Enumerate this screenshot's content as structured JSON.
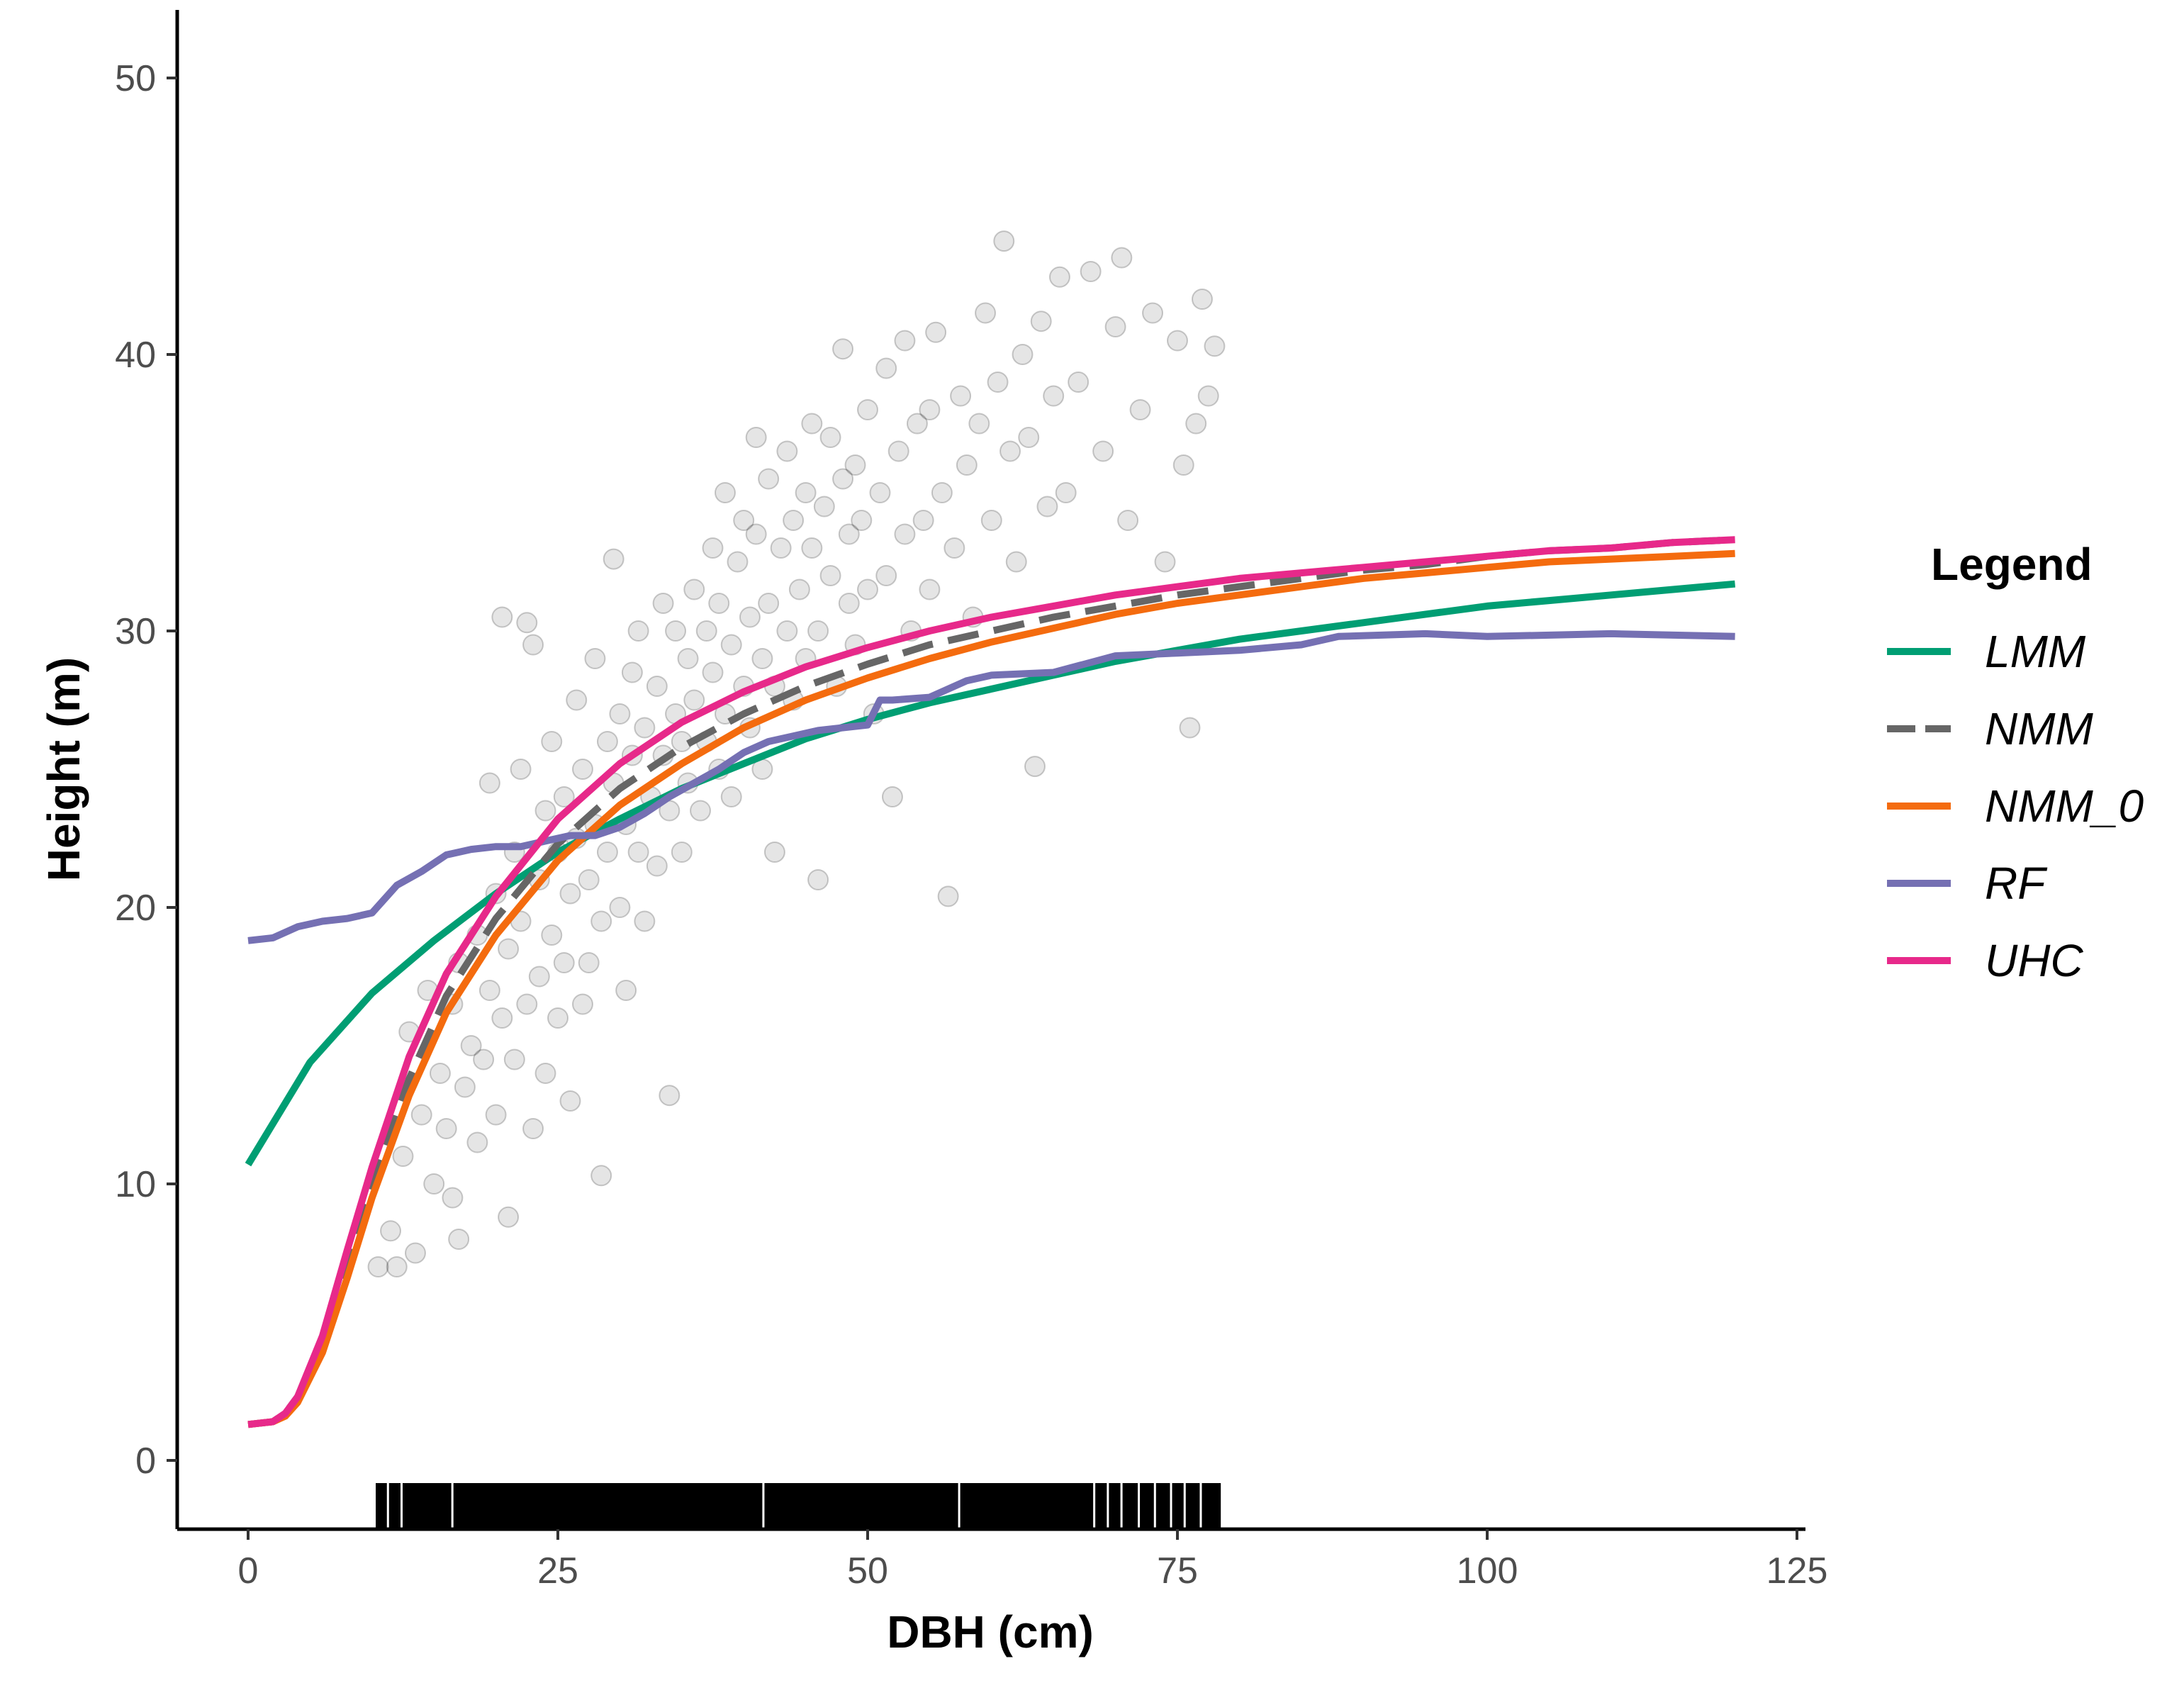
{
  "chart_data": {
    "type": "scatter",
    "title": "",
    "xlabel": "DBH (cm)",
    "ylabel": "Height (m)",
    "xlim": [
      -12,
      125
    ],
    "ylim": [
      -2.4,
      52.5
    ],
    "xticks": [
      "0",
      "25",
      "50",
      "75",
      "100",
      "125"
    ],
    "yticks": [
      "0",
      "10",
      "20",
      "30",
      "40",
      "50"
    ],
    "grid": false,
    "legend": {
      "title": "Legend",
      "position": "right"
    },
    "rug": {
      "axis": "x",
      "range": [
        10.3,
        78.5
      ]
    },
    "points": [
      [
        10.5,
        7.0
      ],
      [
        11.5,
        8.3
      ],
      [
        12.0,
        7.0
      ],
      [
        12.5,
        11.0
      ],
      [
        13.0,
        15.5
      ],
      [
        13.5,
        7.5
      ],
      [
        14.0,
        12.5
      ],
      [
        14.5,
        17.0
      ],
      [
        15.0,
        10.0
      ],
      [
        15.5,
        14.0
      ],
      [
        16.0,
        12.0
      ],
      [
        16.5,
        9.5
      ],
      [
        16.5,
        16.5
      ],
      [
        17.0,
        18.0
      ],
      [
        17.0,
        8.0
      ],
      [
        17.5,
        13.5
      ],
      [
        18.0,
        15.0
      ],
      [
        18.5,
        11.5
      ],
      [
        18.5,
        19.0
      ],
      [
        19.0,
        14.5
      ],
      [
        19.5,
        17.0
      ],
      [
        19.5,
        24.5
      ],
      [
        20.0,
        20.5
      ],
      [
        20.0,
        12.5
      ],
      [
        20.5,
        30.5
      ],
      [
        20.5,
        16.0
      ],
      [
        21.0,
        18.5
      ],
      [
        21.0,
        8.8
      ],
      [
        21.5,
        14.5
      ],
      [
        21.5,
        22.0
      ],
      [
        22.0,
        19.5
      ],
      [
        22.0,
        25.0
      ],
      [
        22.5,
        30.3
      ],
      [
        22.5,
        16.5
      ],
      [
        23.0,
        29.5
      ],
      [
        23.0,
        12.0
      ],
      [
        23.5,
        21.0
      ],
      [
        23.5,
        17.5
      ],
      [
        24.0,
        23.5
      ],
      [
        24.0,
        14.0
      ],
      [
        24.5,
        19.0
      ],
      [
        24.5,
        26.0
      ],
      [
        25.0,
        22.0
      ],
      [
        25.0,
        16.0
      ],
      [
        25.5,
        18.0
      ],
      [
        25.5,
        24.0
      ],
      [
        26.0,
        20.5
      ],
      [
        26.0,
        13.0
      ],
      [
        26.5,
        27.5
      ],
      [
        26.5,
        22.5
      ],
      [
        27.0,
        16.5
      ],
      [
        27.0,
        25.0
      ],
      [
        27.5,
        21.0
      ],
      [
        27.5,
        18.0
      ],
      [
        28.0,
        23.0
      ],
      [
        28.0,
        29.0
      ],
      [
        28.5,
        19.5
      ],
      [
        28.5,
        10.3
      ],
      [
        29.0,
        26.0
      ],
      [
        29.0,
        22.0
      ],
      [
        29.5,
        32.6
      ],
      [
        29.5,
        24.5
      ],
      [
        30.0,
        20.0
      ],
      [
        30.0,
        27.0
      ],
      [
        30.5,
        23.0
      ],
      [
        30.5,
        17.0
      ],
      [
        31.0,
        28.5
      ],
      [
        31.0,
        25.5
      ],
      [
        31.5,
        22.0
      ],
      [
        31.5,
        30.0
      ],
      [
        32.0,
        26.5
      ],
      [
        32.0,
        19.5
      ],
      [
        32.5,
        24.0
      ],
      [
        33.0,
        28.0
      ],
      [
        33.0,
        21.5
      ],
      [
        33.5,
        25.5
      ],
      [
        33.5,
        31.0
      ],
      [
        34.0,
        23.5
      ],
      [
        34.0,
        13.2
      ],
      [
        34.5,
        27.0
      ],
      [
        34.5,
        30.0
      ],
      [
        35.0,
        22.0
      ],
      [
        35.0,
        26.0
      ],
      [
        35.5,
        29.0
      ],
      [
        35.5,
        24.5
      ],
      [
        36.0,
        31.5
      ],
      [
        36.0,
        27.5
      ],
      [
        36.5,
        23.5
      ],
      [
        37.0,
        30.0
      ],
      [
        37.0,
        26.0
      ],
      [
        37.5,
        28.5
      ],
      [
        37.5,
        33.0
      ],
      [
        38.0,
        25.0
      ],
      [
        38.0,
        31.0
      ],
      [
        38.5,
        27.0
      ],
      [
        38.5,
        35.0
      ],
      [
        39.0,
        29.5
      ],
      [
        39.0,
        24.0
      ],
      [
        39.5,
        32.5
      ],
      [
        40.0,
        28.0
      ],
      [
        40.0,
        34.0
      ],
      [
        40.5,
        30.5
      ],
      [
        40.5,
        26.5
      ],
      [
        41.0,
        33.5
      ],
      [
        41.0,
        37.0
      ],
      [
        41.5,
        29.0
      ],
      [
        41.5,
        25.0
      ],
      [
        42.0,
        31.0
      ],
      [
        42.0,
        35.5
      ],
      [
        42.5,
        28.0
      ],
      [
        42.5,
        22.0
      ],
      [
        43.0,
        33.0
      ],
      [
        43.5,
        30.0
      ],
      [
        43.5,
        36.5
      ],
      [
        44.0,
        27.5
      ],
      [
        44.0,
        34.0
      ],
      [
        44.5,
        31.5
      ],
      [
        45.0,
        35.0
      ],
      [
        45.0,
        29.0
      ],
      [
        45.5,
        37.5
      ],
      [
        45.5,
        33.0
      ],
      [
        46.0,
        30.0
      ],
      [
        46.0,
        21.0
      ],
      [
        46.5,
        34.5
      ],
      [
        47.0,
        32.0
      ],
      [
        47.0,
        37.0
      ],
      [
        47.5,
        28.0
      ],
      [
        48.0,
        35.5
      ],
      [
        48.0,
        40.2
      ],
      [
        48.5,
        31.0
      ],
      [
        48.5,
        33.5
      ],
      [
        49.0,
        36.0
      ],
      [
        49.0,
        29.5
      ],
      [
        49.5,
        34.0
      ],
      [
        50.0,
        31.5
      ],
      [
        50.0,
        38.0
      ],
      [
        50.5,
        27.0
      ],
      [
        51.0,
        35.0
      ],
      [
        51.5,
        39.5
      ],
      [
        51.5,
        32.0
      ],
      [
        52.0,
        24.0
      ],
      [
        52.5,
        36.5
      ],
      [
        53.0,
        40.5
      ],
      [
        53.0,
        33.5
      ],
      [
        53.5,
        30.0
      ],
      [
        54.0,
        37.5
      ],
      [
        54.5,
        34.0
      ],
      [
        55.0,
        31.5
      ],
      [
        55.0,
        38.0
      ],
      [
        55.5,
        40.8
      ],
      [
        56.0,
        35.0
      ],
      [
        56.5,
        20.4
      ],
      [
        57.0,
        33.0
      ],
      [
        57.5,
        38.5
      ],
      [
        58.0,
        36.0
      ],
      [
        58.5,
        30.5
      ],
      [
        59.0,
        37.5
      ],
      [
        59.5,
        41.5
      ],
      [
        60.0,
        34.0
      ],
      [
        60.5,
        39.0
      ],
      [
        61.0,
        44.1
      ],
      [
        61.5,
        36.5
      ],
      [
        62.0,
        32.5
      ],
      [
        62.5,
        40.0
      ],
      [
        63.0,
        37.0
      ],
      [
        63.5,
        25.1
      ],
      [
        64.0,
        41.2
      ],
      [
        64.5,
        34.5
      ],
      [
        65.0,
        38.5
      ],
      [
        65.5,
        42.8
      ],
      [
        66.0,
        35.0
      ],
      [
        67.0,
        39.0
      ],
      [
        68.0,
        43.0
      ],
      [
        69.0,
        36.5
      ],
      [
        70.0,
        41.0
      ],
      [
        70.5,
        43.5
      ],
      [
        71.0,
        34.0
      ],
      [
        72.0,
        38.0
      ],
      [
        73.0,
        41.5
      ],
      [
        74.0,
        32.5
      ],
      [
        75.0,
        40.5
      ],
      [
        75.5,
        36.0
      ],
      [
        76.0,
        26.5
      ],
      [
        76.5,
        37.5
      ],
      [
        77.0,
        42.0
      ],
      [
        77.5,
        38.5
      ],
      [
        78.0,
        40.3
      ]
    ],
    "series": [
      {
        "name": "LMM",
        "color": "#009E73",
        "dash": "solid",
        "x": [
          0,
          5,
          10,
          15,
          20,
          25,
          30,
          35,
          40,
          45,
          50,
          55,
          60,
          65,
          70,
          75,
          80,
          85,
          90,
          95,
          100,
          105,
          110,
          115,
          120
        ],
        "y": [
          10.7,
          14.4,
          16.9,
          18.8,
          20.5,
          22.0,
          23.2,
          24.3,
          25.2,
          26.1,
          26.8,
          27.4,
          27.9,
          28.4,
          28.9,
          29.3,
          29.7,
          30.0,
          30.3,
          30.6,
          30.9,
          31.1,
          31.3,
          31.5,
          31.7
        ]
      },
      {
        "name": "NMM",
        "color": "#666666",
        "dash": "dashed",
        "x": [
          0,
          2,
          3,
          4,
          6,
          8,
          10,
          13,
          16,
          20,
          25,
          30,
          35,
          40,
          45,
          50,
          55,
          60,
          65,
          70,
          75,
          80,
          85,
          90,
          95,
          100,
          105,
          110,
          115,
          120
        ],
        "y": [
          1.3,
          1.4,
          1.7,
          2.3,
          4.3,
          7.2,
          10.0,
          13.8,
          16.8,
          19.6,
          22.3,
          24.3,
          25.8,
          27.0,
          28.0,
          28.8,
          29.5,
          30.0,
          30.5,
          30.9,
          31.3,
          31.6,
          31.9,
          32.2,
          32.4,
          32.7,
          32.9,
          33.0,
          33.2,
          33.3
        ]
      },
      {
        "name": "NMM_0",
        "color": "#F46B0E",
        "dash": "solid",
        "x": [
          0,
          2,
          3,
          4,
          6,
          8,
          10,
          13,
          16,
          20,
          25,
          30,
          35,
          40,
          45,
          50,
          55,
          60,
          65,
          70,
          75,
          80,
          85,
          90,
          95,
          100,
          105,
          110,
          115,
          120
        ],
        "y": [
          1.3,
          1.4,
          1.6,
          2.1,
          3.9,
          6.6,
          9.5,
          13.2,
          16.2,
          19.0,
          21.7,
          23.7,
          25.2,
          26.5,
          27.5,
          28.3,
          29.0,
          29.6,
          30.1,
          30.6,
          31.0,
          31.3,
          31.6,
          31.9,
          32.1,
          32.3,
          32.5,
          32.6,
          32.7,
          32.8
        ]
      },
      {
        "name": "RF",
        "color": "#7570B3",
        "dash": "solid",
        "x": [
          0,
          2,
          4,
          6,
          8,
          10,
          12,
          14,
          16,
          18,
          20,
          22,
          24,
          26,
          28,
          30,
          32,
          34,
          36,
          38,
          40,
          42,
          44,
          46,
          48,
          50,
          51,
          52,
          55,
          58,
          60,
          65,
          70,
          75,
          80,
          85,
          88,
          95,
          100,
          110,
          120
        ],
        "y": [
          18.8,
          18.9,
          19.3,
          19.5,
          19.6,
          19.8,
          20.8,
          21.3,
          21.9,
          22.1,
          22.2,
          22.2,
          22.4,
          22.6,
          22.6,
          22.9,
          23.4,
          24.0,
          24.5,
          25.0,
          25.6,
          26.0,
          26.2,
          26.4,
          26.5,
          26.6,
          27.5,
          27.5,
          27.6,
          28.2,
          28.4,
          28.5,
          29.1,
          29.2,
          29.3,
          29.5,
          29.8,
          29.9,
          29.8,
          29.9,
          29.8
        ]
      },
      {
        "name": "UHC",
        "color": "#E7298A",
        "dash": "solid",
        "x": [
          0,
          2,
          3,
          4,
          6,
          8,
          10,
          13,
          16,
          20,
          25,
          30,
          35,
          40,
          45,
          50,
          55,
          60,
          65,
          70,
          75,
          80,
          85,
          90,
          95,
          100,
          105,
          110,
          115,
          120
        ],
        "y": [
          1.3,
          1.4,
          1.7,
          2.3,
          4.5,
          7.6,
          10.6,
          14.6,
          17.6,
          20.4,
          23.2,
          25.2,
          26.7,
          27.8,
          28.7,
          29.4,
          30.0,
          30.5,
          30.9,
          31.3,
          31.6,
          31.9,
          32.1,
          32.3,
          32.5,
          32.7,
          32.9,
          33.0,
          33.2,
          33.3
        ]
      }
    ]
  }
}
